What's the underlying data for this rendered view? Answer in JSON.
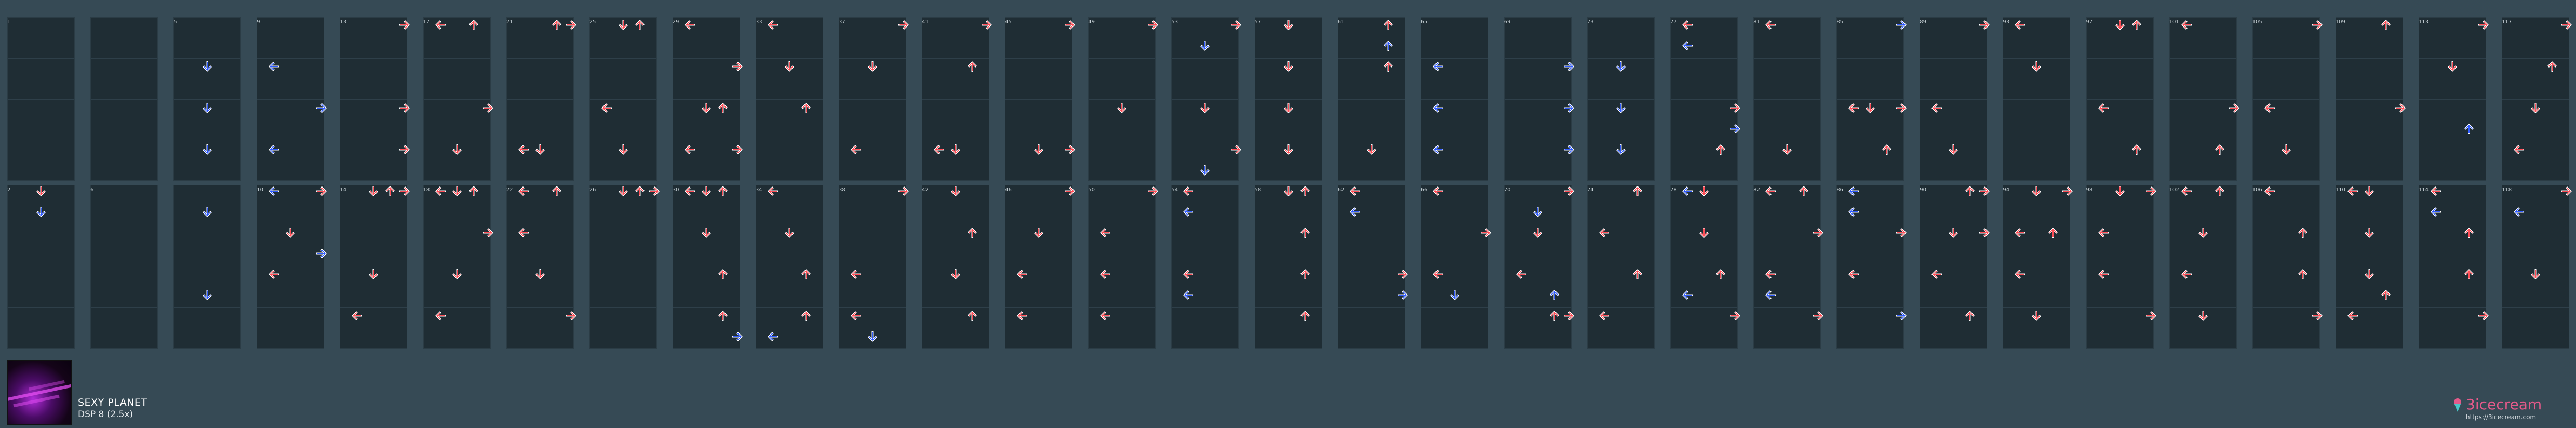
{
  "song": {
    "title": "SEXY PLANET",
    "chart": "DSP 8 (2.5x)"
  },
  "brand": {
    "name": "3icecream",
    "url": "https://3icecream.com"
  },
  "colors": {
    "background": "#364a55",
    "column": "#1f2d34",
    "arrow_red": "#ff4e57",
    "arrow_blue": "#2f5bff",
    "brand": "#e35a8a"
  },
  "measure_labels": [
    "1",
    "",
    "5",
    "9",
    "13",
    "17",
    "21",
    "25",
    "29",
    "33",
    "37",
    "41",
    "45",
    "49",
    "53",
    "57",
    "61",
    "65",
    "69",
    "73",
    "77",
    "81",
    "85",
    "89",
    "93",
    "97",
    "101",
    "105",
    "109",
    "113",
    "117",
    "2",
    "6",
    "",
    "10",
    "14",
    "18",
    "22",
    "26",
    "30",
    "34",
    "38",
    "42",
    "46",
    "50",
    "54",
    "58",
    "62",
    "66",
    "70",
    "74",
    "78",
    "82",
    "86",
    "90",
    "94",
    "98",
    "102",
    "106",
    "110",
    "114",
    "118"
  ],
  "notes": [
    [
      2,
      0,
      1,
      "blue"
    ],
    [
      2,
      1,
      1,
      "blue"
    ],
    [
      2,
      2,
      1,
      "blue"
    ],
    [
      3,
      0,
      0,
      "blue"
    ],
    [
      3,
      1,
      3,
      "blue"
    ],
    [
      3,
      2,
      0,
      "blue"
    ],
    [
      4,
      -1,
      3,
      "red"
    ],
    [
      4,
      1,
      3,
      "red"
    ],
    [
      4,
      2,
      3,
      "red"
    ],
    [
      4,
      3,
      1,
      "red"
    ],
    [
      5,
      -1,
      0,
      "red"
    ],
    [
      5,
      -1,
      2,
      "red"
    ],
    [
      5,
      1,
      3,
      "red"
    ],
    [
      5,
      2,
      1,
      "red"
    ],
    [
      5,
      3,
      0,
      "red"
    ],
    [
      6,
      -1,
      2,
      "red"
    ],
    [
      6,
      -1,
      3,
      "red"
    ],
    [
      6,
      2,
      0,
      "red"
    ],
    [
      6,
      2,
      1,
      "red"
    ],
    [
      7,
      -1,
      1,
      "red"
    ],
    [
      7,
      -1,
      2,
      "red"
    ],
    [
      7,
      1,
      0,
      "red"
    ],
    [
      7,
      2,
      1,
      "red"
    ],
    [
      7,
      3,
      3,
      "red"
    ],
    [
      8,
      -1,
      0,
      "red"
    ],
    [
      8,
      0,
      3,
      "red"
    ],
    [
      8,
      1,
      1,
      "red"
    ],
    [
      8,
      1,
      2,
      "red"
    ],
    [
      8,
      2,
      0,
      "red"
    ],
    [
      8,
      2,
      3,
      "red"
    ],
    [
      8,
      3,
      1,
      "red"
    ],
    [
      8,
      3,
      2,
      "red"
    ],
    [
      9,
      -1,
      0,
      "red"
    ],
    [
      9,
      0,
      1,
      "red"
    ],
    [
      9,
      1,
      2,
      "red"
    ],
    [
      9,
      3,
      0,
      "red"
    ],
    [
      10,
      -1,
      3,
      "red"
    ],
    [
      10,
      0,
      1,
      "red"
    ],
    [
      10,
      2,
      0,
      "red"
    ],
    [
      11,
      -1,
      3,
      "red"
    ],
    [
      11,
      0,
      2,
      "red"
    ],
    [
      11,
      2,
      0,
      "red"
    ],
    [
      11,
      2,
      1,
      "red"
    ],
    [
      11,
      3,
      1,
      "red"
    ],
    [
      12,
      -1,
      3,
      "red"
    ],
    [
      12,
      2,
      1,
      "red"
    ],
    [
      12,
      2,
      3,
      "red"
    ],
    [
      13,
      -1,
      3,
      "red"
    ],
    [
      13,
      1,
      1,
      "red"
    ],
    [
      13,
      3,
      3,
      "red"
    ],
    [
      14,
      -1,
      3,
      "red"
    ],
    [
      14,
      -0.5,
      1,
      "blue"
    ],
    [
      14,
      1,
      1,
      "red"
    ],
    [
      14,
      2,
      3,
      "red"
    ],
    [
      14,
      2.5,
      1,
      "blue"
    ],
    [
      15,
      -1,
      1,
      "red"
    ],
    [
      15,
      0,
      1,
      "red"
    ],
    [
      15,
      1,
      1,
      "red"
    ],
    [
      15,
      2,
      1,
      "red"
    ],
    [
      15,
      3,
      1,
      "red"
    ],
    [
      16,
      -1,
      2,
      "red"
    ],
    [
      16,
      -0.5,
      2,
      "blue"
    ],
    [
      16,
      0,
      2,
      "red"
    ],
    [
      16,
      2,
      1,
      "red"
    ],
    [
      17,
      0,
      0,
      "blue"
    ],
    [
      17,
      1,
      0,
      "blue"
    ],
    [
      17,
      2,
      0,
      "blue"
    ],
    [
      18,
      0,
      3,
      "blue"
    ],
    [
      18,
      1,
      3,
      "blue"
    ],
    [
      18,
      2,
      3,
      "blue"
    ],
    [
      19,
      0,
      1,
      "blue"
    ],
    [
      19,
      1,
      1,
      "blue"
    ],
    [
      19,
      2,
      1,
      "blue"
    ],
    [
      20,
      -1,
      0,
      "red"
    ],
    [
      20,
      -0.5,
      0,
      "blue"
    ],
    [
      20,
      1,
      3,
      "red"
    ],
    [
      20,
      1.5,
      3,
      "blue"
    ],
    [
      20,
      2,
      2,
      "red"
    ],
    [
      20,
      3,
      1,
      "red"
    ],
    [
      21,
      -1,
      0,
      "red"
    ],
    [
      21,
      2,
      1,
      "red"
    ],
    [
      21,
      3,
      0,
      "red"
    ],
    [
      22,
      -1,
      3,
      "blue"
    ],
    [
      22,
      1,
      3,
      "red"
    ],
    [
      22,
      1,
      0,
      "red"
    ],
    [
      22,
      1,
      1,
      "red"
    ],
    [
      22,
      2,
      2,
      "red"
    ],
    [
      23,
      -1,
      3,
      "red"
    ],
    [
      23,
      1,
      0,
      "red"
    ],
    [
      23,
      2,
      1,
      "red"
    ],
    [
      23,
      3,
      3,
      "red"
    ],
    [
      24,
      -1,
      0,
      "red"
    ],
    [
      24,
      0,
      1,
      "red"
    ],
    [
      24,
      3,
      3,
      "red"
    ],
    [
      25,
      -1,
      1,
      "red"
    ],
    [
      25,
      -1,
      2,
      "red"
    ],
    [
      25,
      1,
      0,
      "red"
    ],
    [
      25,
      2,
      2,
      "red"
    ],
    [
      25,
      3,
      3,
      "red"
    ],
    [
      26,
      -1,
      0,
      "red"
    ],
    [
      26,
      1,
      3,
      "red"
    ],
    [
      26,
      2,
      2,
      "red"
    ],
    [
      26,
      3,
      0,
      "red"
    ],
    [
      27,
      -1,
      3,
      "red"
    ],
    [
      27,
      1,
      0,
      "red"
    ],
    [
      27,
      2,
      1,
      "red"
    ],
    [
      27,
      3,
      0,
      "red"
    ],
    [
      28,
      -1,
      2,
      "red"
    ],
    [
      28,
      1,
      3,
      "red"
    ],
    [
      28,
      3,
      1,
      "red"
    ],
    [
      29,
      -1,
      3,
      "red"
    ],
    [
      29,
      0,
      1,
      "red"
    ],
    [
      29,
      1.5,
      2,
      "blue"
    ],
    [
      29,
      3,
      0,
      "blue"
    ],
    [
      30,
      -1,
      3,
      "red"
    ],
    [
      30,
      0,
      2,
      "red"
    ],
    [
      30,
      1,
      1,
      "red"
    ],
    [
      30,
      2,
      0,
      "red"
    ],
    [
      30,
      3,
      3,
      "red"
    ],
    [
      0,
      4,
      1,
      "red"
    ],
    [
      0,
      4.5,
      1,
      "blue"
    ],
    [
      2,
      4.5,
      1,
      "blue"
    ],
    [
      2,
      6.5,
      1,
      "blue"
    ],
    [
      3,
      4,
      0,
      "blue"
    ],
    [
      3,
      4,
      3,
      "red"
    ],
    [
      3,
      5,
      1,
      "red"
    ],
    [
      3,
      5.5,
      3,
      "blue"
    ],
    [
      3,
      6,
      0,
      "red"
    ],
    [
      4,
      4,
      2,
      "red"
    ],
    [
      4,
      4,
      3,
      "red"
    ],
    [
      4,
      6,
      1,
      "red"
    ],
    [
      4,
      7,
      0,
      "red"
    ],
    [
      5,
      4,
      1,
      "red"
    ],
    [
      5,
      4,
      2,
      "red"
    ],
    [
      5,
      4,
      0,
      "red"
    ],
    [
      5,
      5,
      3,
      "red"
    ],
    [
      5,
      6,
      1,
      "red"
    ],
    [
      5,
      7,
      0,
      "red"
    ],
    [
      6,
      4,
      0,
      "red"
    ],
    [
      6,
      4,
      2,
      "red"
    ],
    [
      6,
      5,
      0,
      "red"
    ],
    [
      6,
      6,
      1,
      "red"
    ],
    [
      6,
      7,
      3,
      "red"
    ],
    [
      7,
      4,
      1,
      "red"
    ],
    [
      7,
      4,
      2,
      "red"
    ],
    [
      7,
      4,
      3,
      "red"
    ],
    [
      8,
      4,
      0,
      "red"
    ],
    [
      8,
      5,
      1,
      "red"
    ],
    [
      8,
      6,
      2,
      "red"
    ],
    [
      8,
      7,
      2,
      "red"
    ],
    [
      8,
      7.5,
      3,
      "blue"
    ],
    [
      9,
      5,
      1,
      "red"
    ],
    [
      9,
      6,
      2,
      "red"
    ],
    [
      9,
      7,
      2,
      "red"
    ],
    [
      9,
      7.5,
      0,
      "blue"
    ],
    [
      10,
      4,
      3,
      "red"
    ],
    [
      10,
      6,
      0,
      "red"
    ],
    [
      10,
      7,
      0,
      "red"
    ],
    [
      10,
      7.5,
      1,
      "blue"
    ],
    [
      11,
      5,
      2,
      "red"
    ],
    [
      11,
      6,
      1,
      "red"
    ],
    [
      11,
      7,
      2,
      "red"
    ],
    [
      12,
      4,
      3,
      "red"
    ],
    [
      12,
      5,
      1,
      "red"
    ],
    [
      12,
      6,
      0,
      "red"
    ],
    [
      12,
      7,
      0,
      "red"
    ],
    [
      13,
      5,
      0,
      "red"
    ],
    [
      13,
      6,
      0,
      "red"
    ],
    [
      13,
      7,
      0,
      "red"
    ],
    [
      14,
      4,
      0,
      "red"
    ],
    [
      14,
      4.5,
      0,
      "blue"
    ],
    [
      14,
      6,
      0,
      "red"
    ],
    [
      14,
      6.5,
      0,
      "blue"
    ],
    [
      15,
      4,
      2,
      "red"
    ],
    [
      15,
      5,
      2,
      "red"
    ],
    [
      15,
      6,
      2,
      "red"
    ],
    [
      15,
      7,
      2,
      "red"
    ],
    [
      16,
      4,
      0,
      "red"
    ],
    [
      16,
      4.5,
      0,
      "blue"
    ],
    [
      16,
      6,
      3,
      "red"
    ],
    [
      16,
      6.5,
      3,
      "blue"
    ],
    [
      17,
      4,
      0,
      "red"
    ],
    [
      17,
      5,
      3,
      "red"
    ],
    [
      17,
      6,
      0,
      "red"
    ],
    [
      17,
      6.5,
      1,
      "blue"
    ],
    [
      18,
      4,
      3,
      "red"
    ],
    [
      18,
      4.5,
      1,
      "blue"
    ],
    [
      18,
      5,
      1,
      "red"
    ],
    [
      18,
      6,
      0,
      "red"
    ],
    [
      18,
      6.5,
      2,
      "blue"
    ],
    [
      18,
      7,
      2,
      "red"
    ],
    [
      18,
      7,
      3,
      "red"
    ],
    [
      19,
      4,
      2,
      "red"
    ],
    [
      19,
      5,
      0,
      "red"
    ],
    [
      19,
      6,
      2,
      "red"
    ],
    [
      19,
      7,
      0,
      "red"
    ],
    [
      20,
      4,
      0,
      "blue"
    ],
    [
      20,
      5,
      1,
      "red"
    ],
    [
      20,
      6,
      2,
      "red"
    ],
    [
      20,
      6.5,
      0,
      "blue"
    ],
    [
      20,
      7,
      3,
      "red"
    ],
    [
      21,
      4,
      2,
      "red"
    ],
    [
      21,
      5,
      3,
      "red"
    ],
    [
      21,
      6,
      0,
      "red"
    ],
    [
      21,
      6.5,
      0,
      "blue"
    ],
    [
      21,
      7,
      3,
      "red"
    ],
    [
      22,
      4,
      0,
      "blue"
    ],
    [
      22,
      4.5,
      0,
      "blue"
    ],
    [
      22,
      5,
      3,
      "red"
    ],
    [
      22,
      6,
      0,
      "red"
    ],
    [
      22,
      7,
      3,
      "blue"
    ],
    [
      23,
      4,
      2,
      "red"
    ],
    [
      23,
      5,
      1,
      "red"
    ],
    [
      23,
      5,
      3,
      "red"
    ],
    [
      23,
      6,
      0,
      "red"
    ],
    [
      23,
      7,
      2,
      "red"
    ],
    [
      24,
      4,
      1,
      "red"
    ],
    [
      24,
      5,
      0,
      "red"
    ],
    [
      24,
      5,
      2,
      "red"
    ],
    [
      24,
      6,
      0,
      "red"
    ],
    [
      24,
      7,
      1,
      "red"
    ],
    [
      25,
      4,
      1,
      "red"
    ],
    [
      25,
      5,
      0,
      "red"
    ],
    [
      25,
      6,
      0,
      "red"
    ],
    [
      25,
      7,
      3,
      "red"
    ],
    [
      26,
      4,
      2,
      "red"
    ],
    [
      26,
      5,
      1,
      "red"
    ],
    [
      26,
      6,
      0,
      "red"
    ],
    [
      26,
      7,
      1,
      "red"
    ],
    [
      27,
      4,
      0,
      "red"
    ],
    [
      27,
      5,
      2,
      "red"
    ],
    [
      27,
      6,
      2,
      "red"
    ],
    [
      27,
      7,
      3,
      "red"
    ],
    [
      28,
      4,
      0,
      "red"
    ],
    [
      28,
      5,
      1,
      "red"
    ],
    [
      28,
      6,
      1,
      "red"
    ],
    [
      28,
      6.5,
      2,
      "red"
    ],
    [
      28,
      7,
      0,
      "red"
    ],
    [
      29,
      4,
      0,
      "red"
    ],
    [
      29,
      4.5,
      0,
      "blue"
    ],
    [
      29,
      5,
      2,
      "red"
    ],
    [
      29,
      6,
      2,
      "red"
    ],
    [
      29,
      7,
      3,
      "red"
    ],
    [
      30,
      3.5,
      0,
      "blue"
    ],
    [
      30,
      6,
      1,
      "red"
    ]
  ]
}
